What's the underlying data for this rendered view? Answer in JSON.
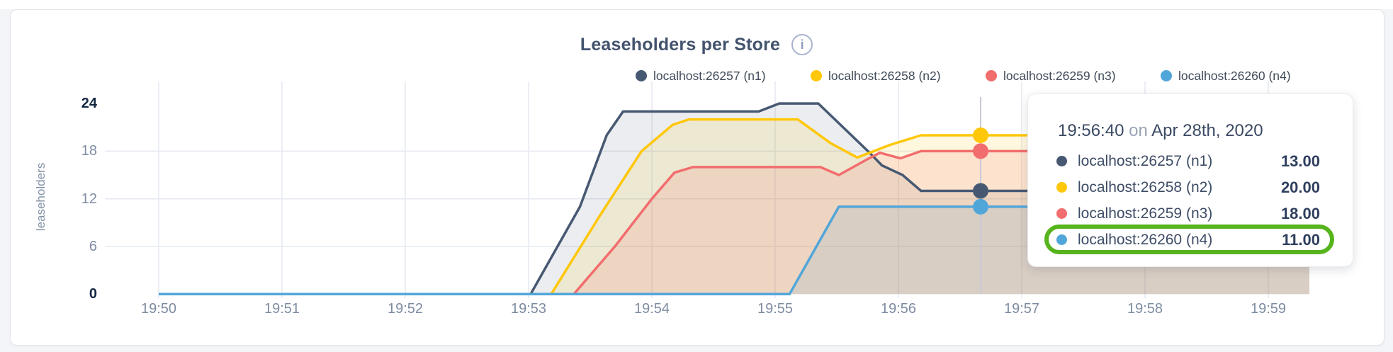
{
  "header": {
    "title": "Leaseholders per Store",
    "info_icon": "i"
  },
  "chart_data": {
    "type": "area",
    "title": "Leaseholders per Store",
    "xlabel": "",
    "ylabel": "leaseholders",
    "ylim": [
      0,
      24
    ],
    "yticks": [
      0,
      6,
      12,
      18,
      24
    ],
    "yticks_bold": [
      0,
      24
    ],
    "grid_y_values": [
      6,
      12,
      18
    ],
    "grid": "on",
    "legend_position": "top",
    "xticks": [
      "19:50",
      "19:51",
      "19:52",
      "19:53",
      "19:54",
      "19:55",
      "19:56",
      "19:57",
      "19:58",
      "19:59"
    ],
    "x_unit": "seconds since 19:50:00",
    "series": [
      {
        "name": "localhost:26257 (n1)",
        "color": "#475872",
        "fill_opacity": 0.11,
        "hover_value": 13,
        "points": [
          [
            0,
            0
          ],
          [
            181,
            0
          ],
          [
            205,
            11
          ],
          [
            218,
            20
          ],
          [
            226,
            23
          ],
          [
            292,
            23
          ],
          [
            302,
            24
          ],
          [
            321,
            24
          ],
          [
            346,
            17.8
          ],
          [
            352,
            16.2
          ],
          [
            362,
            15
          ],
          [
            371,
            13
          ],
          [
            560,
            13
          ]
        ]
      },
      {
        "name": "localhost:26258 (n2)",
        "color": "#ffc709",
        "fill_opacity": 0.13,
        "hover_value": 20,
        "points": [
          [
            0,
            0
          ],
          [
            191,
            0
          ],
          [
            215,
            10
          ],
          [
            235,
            18
          ],
          [
            250,
            21.3
          ],
          [
            258,
            22
          ],
          [
            311,
            22
          ],
          [
            327,
            19
          ],
          [
            340,
            17.2
          ],
          [
            356,
            18.8
          ],
          [
            371,
            20
          ],
          [
            560,
            20
          ]
        ]
      },
      {
        "name": "localhost:26259 (n3)",
        "color": "#f26d6d",
        "fill_opacity": 0.15,
        "hover_value": 18,
        "points": [
          [
            0,
            0
          ],
          [
            202,
            0
          ],
          [
            222,
            6
          ],
          [
            240,
            12
          ],
          [
            251,
            15.3
          ],
          [
            260,
            16
          ],
          [
            322,
            16
          ],
          [
            331,
            15
          ],
          [
            345,
            17
          ],
          [
            351,
            17.8
          ],
          [
            361,
            17.1
          ],
          [
            371,
            18
          ],
          [
            560,
            18
          ]
        ]
      },
      {
        "name": "localhost:26260 (n4)",
        "color": "#51a6d9",
        "fill_opacity": 0.13,
        "hover_value": 11,
        "points": [
          [
            0,
            0
          ],
          [
            307,
            0
          ],
          [
            331,
            11
          ],
          [
            560,
            11
          ]
        ]
      }
    ],
    "hover": {
      "t": 400,
      "time_label": "19:56:40"
    }
  },
  "tooltip": {
    "time": "19:56:40",
    "on_word": "on",
    "date": "Apr 28th, 2020",
    "highlight_color": "#57b41c",
    "rows": [
      {
        "label": "localhost:26257 (n1)",
        "value": "13.00",
        "color": "#475872",
        "highlighted": false
      },
      {
        "label": "localhost:26258 (n2)",
        "value": "20.00",
        "color": "#ffc709",
        "highlighted": false
      },
      {
        "label": "localhost:26259 (n3)",
        "value": "18.00",
        "color": "#f26d6d",
        "highlighted": false
      },
      {
        "label": "localhost:26260 (n4)",
        "value": "11.00",
        "color": "#51a6d9",
        "highlighted": true
      }
    ]
  }
}
